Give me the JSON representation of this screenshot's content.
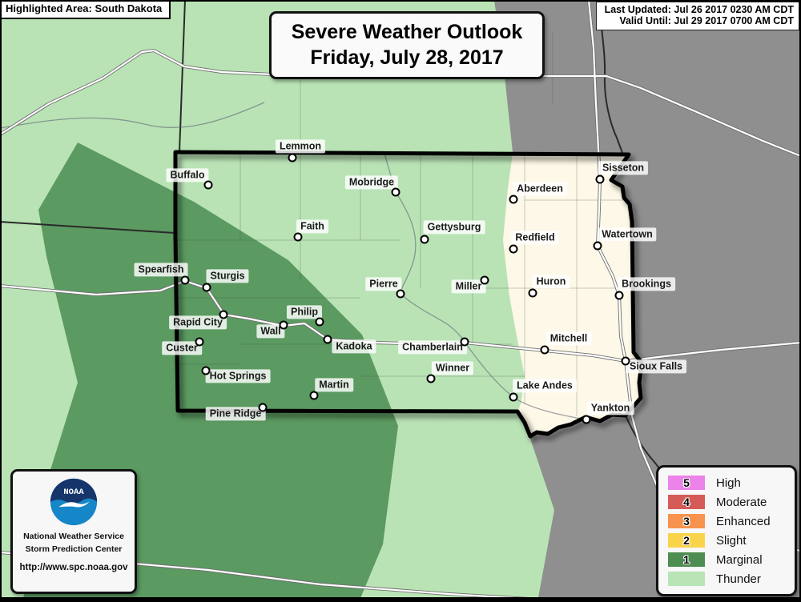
{
  "header": {
    "highlighted_area_label": "Highlighted Area: South Dakota",
    "title_line1": "Severe Weather Outlook",
    "title_line2": "Friday, July 28, 2017",
    "last_updated": "Last Updated: Jul 26 2017 0230 AM CDT",
    "valid_until": "Valid Until: Jul 29 2017 0700 AM CDT"
  },
  "branding": {
    "logo": "noaa-logo",
    "logo_text": "NOAA",
    "org_line1": "National Weather Service",
    "org_line2": "Storm Prediction Center",
    "url": "http://www.spc.noaa.gov"
  },
  "legend": {
    "items": [
      {
        "code": "5",
        "label": "High",
        "color": "#ec83e9"
      },
      {
        "code": "4",
        "label": "Moderate",
        "color": "#d45b58"
      },
      {
        "code": "3",
        "label": "Enhanced",
        "color": "#f8934f"
      },
      {
        "code": "2",
        "label": "Slight",
        "color": "#f9d44a"
      },
      {
        "code": "1",
        "label": "Marginal",
        "color": "#4e8d51"
      },
      {
        "code": "",
        "label": "Thunder",
        "color": "#b9e4b6"
      }
    ]
  },
  "map": {
    "colors": {
      "thunder": "#b9e3b5",
      "marginal": "#5b9a61",
      "no_risk": "#fdf8e7",
      "outside": "#8f8f8f"
    },
    "cities": [
      {
        "name": "Lemmon",
        "dot": [
          365,
          197
        ],
        "label": [
          375,
          183
        ]
      },
      {
        "name": "Buffalo",
        "dot": [
          260,
          231
        ],
        "label": [
          234,
          219
        ]
      },
      {
        "name": "Mobridge",
        "dot": [
          494,
          240
        ],
        "label": [
          464,
          228
        ]
      },
      {
        "name": "Faith",
        "dot": [
          372,
          296
        ],
        "label": [
          390,
          283
        ]
      },
      {
        "name": "Gettysburg",
        "dot": [
          530,
          299
        ],
        "label": [
          567,
          284
        ]
      },
      {
        "name": "Aberdeen",
        "dot": [
          641,
          249
        ],
        "label": [
          674,
          236
        ]
      },
      {
        "name": "Sisseton",
        "dot": [
          749,
          224
        ],
        "label": [
          778,
          210
        ]
      },
      {
        "name": "Redfield",
        "dot": [
          641,
          311
        ],
        "label": [
          668,
          297
        ]
      },
      {
        "name": "Watertown",
        "dot": [
          746,
          307
        ],
        "label": [
          783,
          293
        ]
      },
      {
        "name": "Spearfish",
        "dot": [
          231,
          350
        ],
        "label": [
          201,
          337
        ]
      },
      {
        "name": "Sturgis",
        "dot": [
          258,
          359
        ],
        "label": [
          284,
          345
        ]
      },
      {
        "name": "Pierre",
        "dot": [
          500,
          367
        ],
        "label": [
          479,
          355
        ]
      },
      {
        "name": "Miller",
        "dot": [
          605,
          350
        ],
        "label": [
          585,
          358
        ]
      },
      {
        "name": "Huron",
        "dot": [
          665,
          366
        ],
        "label": [
          688,
          352
        ]
      },
      {
        "name": "Brookings",
        "dot": [
          773,
          369
        ],
        "label": [
          807,
          355
        ]
      },
      {
        "name": "Rapid City",
        "dot": [
          279,
          393
        ],
        "label": [
          247,
          403
        ]
      },
      {
        "name": "Philip",
        "dot": [
          399,
          402
        ],
        "label": [
          380,
          390
        ]
      },
      {
        "name": "Wall",
        "dot": [
          354,
          406
        ],
        "label": [
          338,
          414
        ]
      },
      {
        "name": "Kadoka",
        "dot": [
          409,
          424
        ],
        "label": [
          442,
          433
        ]
      },
      {
        "name": "Chamberlain",
        "dot": [
          580,
          427
        ],
        "label": [
          540,
          434
        ]
      },
      {
        "name": "Mitchell",
        "dot": [
          680,
          437
        ],
        "label": [
          710,
          423
        ]
      },
      {
        "name": "Custer",
        "dot": [
          249,
          427
        ],
        "label": [
          227,
          435
        ]
      },
      {
        "name": "Winner",
        "dot": [
          538,
          473
        ],
        "label": [
          565,
          460
        ]
      },
      {
        "name": "Sioux Falls",
        "dot": [
          781,
          451
        ],
        "label": [
          819,
          458
        ]
      },
      {
        "name": "Hot Springs",
        "dot": [
          257,
          463
        ],
        "label": [
          297,
          470
        ]
      },
      {
        "name": "Martin",
        "dot": [
          392,
          494
        ],
        "label": [
          417,
          481
        ]
      },
      {
        "name": "Lake Andes",
        "dot": [
          641,
          496
        ],
        "label": [
          680,
          482
        ]
      },
      {
        "name": "Yankton",
        "dot": [
          732,
          524
        ],
        "label": [
          762,
          510
        ]
      },
      {
        "name": "Pine Ridge",
        "dot": [
          328,
          509
        ],
        "label": [
          294,
          517
        ]
      }
    ]
  }
}
